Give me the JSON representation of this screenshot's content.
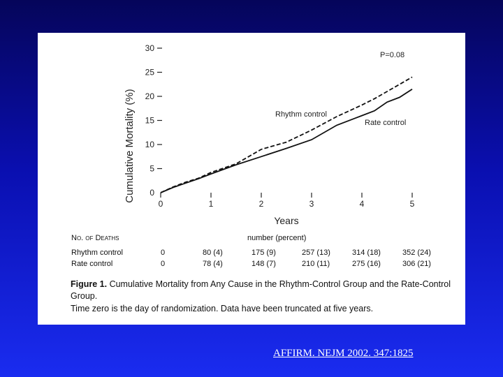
{
  "chart_data": {
    "type": "line",
    "ylabel": "Cumulative Mortality (%)",
    "xlabel": "Years",
    "ylim": [
      0,
      30
    ],
    "xlim": [
      0,
      5
    ],
    "y_ticks": [
      "0",
      "5",
      "10",
      "15",
      "20",
      "25",
      "30"
    ],
    "x_ticks": [
      "0",
      "1",
      "2",
      "3",
      "4",
      "5"
    ],
    "annotation": "P=0.08",
    "series": [
      {
        "name": "Rhythm control",
        "style": "dashed",
        "x": [
          0,
          0.25,
          0.5,
          0.75,
          1.0,
          1.5,
          2.0,
          2.5,
          3.0,
          3.5,
          4.0,
          4.25,
          4.5,
          4.75,
          5.0
        ],
        "y": [
          0,
          1.2,
          2.2,
          3.0,
          4.2,
          6.0,
          9.0,
          10.5,
          13.0,
          15.8,
          18.2,
          19.5,
          21.0,
          22.5,
          24.0
        ]
      },
      {
        "name": "Rate control",
        "style": "solid",
        "x": [
          0,
          0.25,
          0.5,
          0.75,
          1.0,
          1.5,
          2.0,
          2.5,
          3.0,
          3.5,
          4.0,
          4.25,
          4.5,
          4.75,
          5.0
        ],
        "y": [
          0,
          1.1,
          2.0,
          2.9,
          3.9,
          5.8,
          7.5,
          9.2,
          11.0,
          14.0,
          16.0,
          17.0,
          18.8,
          19.8,
          21.5
        ]
      }
    ]
  },
  "deaths_table": {
    "header_label": "No. of Deaths",
    "header_unit": "number (percent)",
    "rows": [
      {
        "label": "Rhythm control",
        "values": [
          "0",
          "80 (4)",
          "175 (9)",
          "257 (13)",
          "314 (18)",
          "352 (24)"
        ]
      },
      {
        "label": "Rate control",
        "values": [
          "0",
          "78 (4)",
          "148 (7)",
          "210 (11)",
          "275 (16)",
          "306 (21)"
        ]
      }
    ]
  },
  "caption": {
    "figure_label": "Figure 1.",
    "title": "Cumulative Mortality from Any Cause in the Rhythm-Control Group and the Rate-Control Group.",
    "note": "Time zero is the day of randomization. Data have been truncated at five years."
  },
  "citation": "AFFIRM. NEJM 2002. 347:1825"
}
